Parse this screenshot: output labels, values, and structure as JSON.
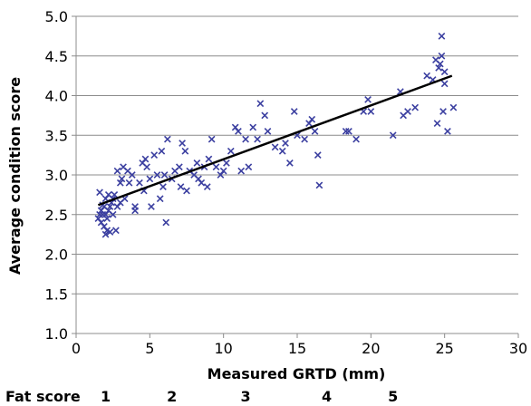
{
  "chart_data": {
    "type": "scatter",
    "xlabel": "Measured GRTD (mm)",
    "ylabel": "Average condition score",
    "xlim": [
      0,
      30
    ],
    "ylim": [
      1.0,
      5.0
    ],
    "x_ticks": [
      "0",
      "5",
      "10",
      "15",
      "20",
      "25",
      "30"
    ],
    "y_ticks": [
      "1.0",
      "1.5",
      "2.0",
      "2.5",
      "3.0",
      "3.5",
      "4.0",
      "4.5",
      "5.0"
    ],
    "grid": "horizontal",
    "marker": "x",
    "point_color": "#3b3fa0",
    "trendline": {
      "x": [
        1.5,
        25.5
      ],
      "y": [
        2.62,
        4.25
      ],
      "color": "#000000"
    },
    "points": [
      [
        1.5,
        2.45
      ],
      [
        1.6,
        2.5
      ],
      [
        1.6,
        2.78
      ],
      [
        1.7,
        2.4
      ],
      [
        1.7,
        2.55
      ],
      [
        1.8,
        2.62
      ],
      [
        1.8,
        2.5
      ],
      [
        1.9,
        2.35
      ],
      [
        1.9,
        2.6
      ],
      [
        2.0,
        2.25
      ],
      [
        2.0,
        2.5
      ],
      [
        2.0,
        2.7
      ],
      [
        2.1,
        2.45
      ],
      [
        2.1,
        2.3
      ],
      [
        2.2,
        2.75
      ],
      [
        2.2,
        2.55
      ],
      [
        2.3,
        2.6
      ],
      [
        2.3,
        2.28
      ],
      [
        2.4,
        2.65
      ],
      [
        2.5,
        2.7
      ],
      [
        2.5,
        2.5
      ],
      [
        2.6,
        2.75
      ],
      [
        2.7,
        2.3
      ],
      [
        2.8,
        2.6
      ],
      [
        2.8,
        3.05
      ],
      [
        3.0,
        2.9
      ],
      [
        3.0,
        2.65
      ],
      [
        3.1,
        2.95
      ],
      [
        3.2,
        3.1
      ],
      [
        3.3,
        2.7
      ],
      [
        3.5,
        3.05
      ],
      [
        3.6,
        2.9
      ],
      [
        3.8,
        3.0
      ],
      [
        4.0,
        2.6
      ],
      [
        4.0,
        2.55
      ],
      [
        4.3,
        2.9
      ],
      [
        4.5,
        3.15
      ],
      [
        4.6,
        2.8
      ],
      [
        4.7,
        3.2
      ],
      [
        4.8,
        3.1
      ],
      [
        5.0,
        2.95
      ],
      [
        5.1,
        2.6
      ],
      [
        5.3,
        3.25
      ],
      [
        5.5,
        3.0
      ],
      [
        5.7,
        2.7
      ],
      [
        5.8,
        3.3
      ],
      [
        5.9,
        2.85
      ],
      [
        6.0,
        3.0
      ],
      [
        6.1,
        2.4
      ],
      [
        6.2,
        3.45
      ],
      [
        6.5,
        2.95
      ],
      [
        6.7,
        3.05
      ],
      [
        7.0,
        3.1
      ],
      [
        7.1,
        2.85
      ],
      [
        7.2,
        3.4
      ],
      [
        7.4,
        3.3
      ],
      [
        7.5,
        2.8
      ],
      [
        7.7,
        3.05
      ],
      [
        8.0,
        3.0
      ],
      [
        8.2,
        3.15
      ],
      [
        8.3,
        2.95
      ],
      [
        8.5,
        2.9
      ],
      [
        8.7,
        3.1
      ],
      [
        8.9,
        2.85
      ],
      [
        9.0,
        3.2
      ],
      [
        9.2,
        3.45
      ],
      [
        9.5,
        3.1
      ],
      [
        9.8,
        3.0
      ],
      [
        10.0,
        3.05
      ],
      [
        10.2,
        3.15
      ],
      [
        10.5,
        3.3
      ],
      [
        10.8,
        3.6
      ],
      [
        11.0,
        3.55
      ],
      [
        11.2,
        3.05
      ],
      [
        11.5,
        3.45
      ],
      [
        11.7,
        3.1
      ],
      [
        12.0,
        3.6
      ],
      [
        12.3,
        3.45
      ],
      [
        12.5,
        3.9
      ],
      [
        12.8,
        3.75
      ],
      [
        13.0,
        3.55
      ],
      [
        13.5,
        3.35
      ],
      [
        14.0,
        3.3
      ],
      [
        14.2,
        3.4
      ],
      [
        14.5,
        3.15
      ],
      [
        14.8,
        3.8
      ],
      [
        15.0,
        3.5
      ],
      [
        15.5,
        3.45
      ],
      [
        15.8,
        3.65
      ],
      [
        16.0,
        3.7
      ],
      [
        16.2,
        3.55
      ],
      [
        16.4,
        3.25
      ],
      [
        16.5,
        2.87
      ],
      [
        18.3,
        3.55
      ],
      [
        18.5,
        3.55
      ],
      [
        19.0,
        3.45
      ],
      [
        19.5,
        3.8
      ],
      [
        19.8,
        3.95
      ],
      [
        20.0,
        3.8
      ],
      [
        21.5,
        3.5
      ],
      [
        22.0,
        4.05
      ],
      [
        22.2,
        3.75
      ],
      [
        22.5,
        3.8
      ],
      [
        23.0,
        3.85
      ],
      [
        23.8,
        4.25
      ],
      [
        24.2,
        4.2
      ],
      [
        24.4,
        4.45
      ],
      [
        24.5,
        3.65
      ],
      [
        24.6,
        4.35
      ],
      [
        24.7,
        4.4
      ],
      [
        24.8,
        4.5
      ],
      [
        24.8,
        4.75
      ],
      [
        24.9,
        3.8
      ],
      [
        25.0,
        4.15
      ],
      [
        25.0,
        4.3
      ],
      [
        25.2,
        3.55
      ],
      [
        25.6,
        3.85
      ]
    ]
  },
  "fat_score": {
    "label": "Fat score",
    "scores": [
      {
        "value": "1",
        "x": 2.0
      },
      {
        "value": "2",
        "x": 6.5
      },
      {
        "value": "3",
        "x": 11.5
      },
      {
        "value": "4",
        "x": 17.0
      },
      {
        "value": "5",
        "x": 21.5
      }
    ]
  }
}
